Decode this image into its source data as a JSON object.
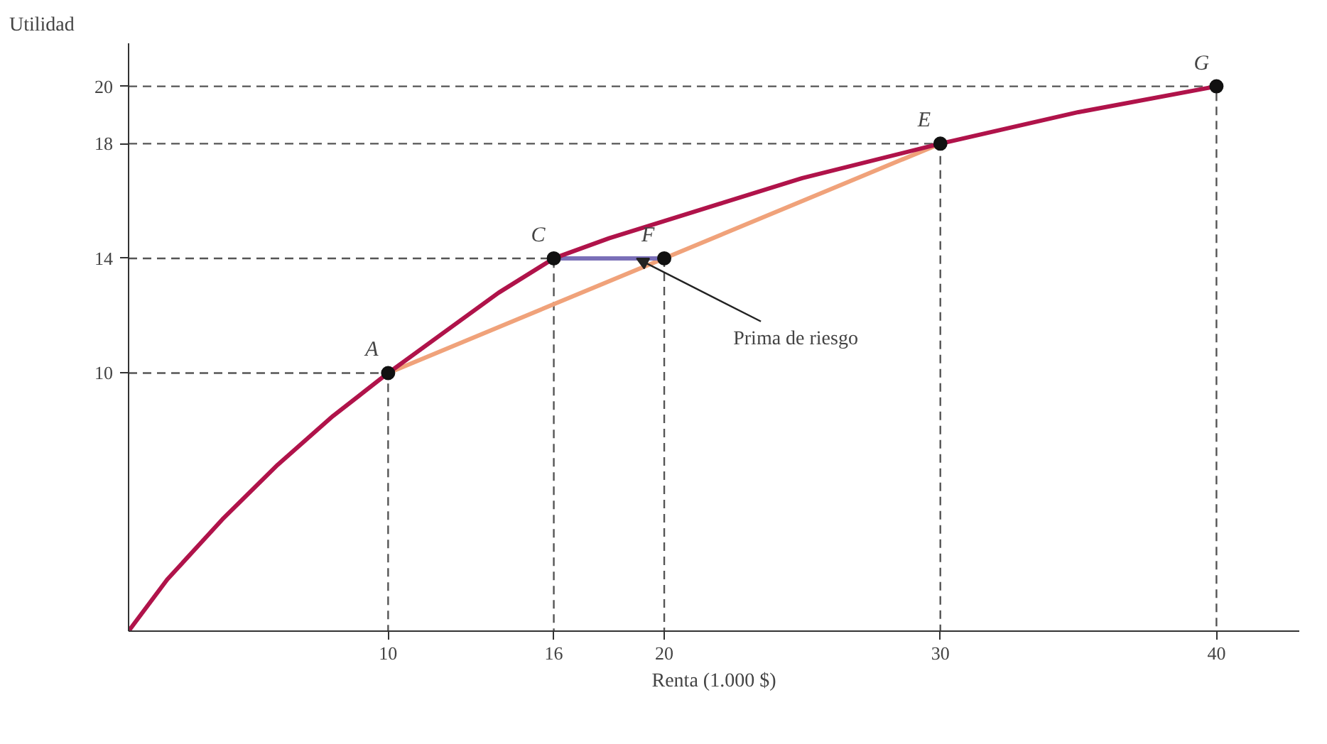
{
  "chart_data": {
    "type": "line",
    "xlabel": "Renta (1.000 $)",
    "ylabel": "Utilidad",
    "xlim": [
      0.6,
      43
    ],
    "ylim": [
      1,
      21.5
    ],
    "xticks": [
      10,
      16,
      20,
      30,
      40
    ],
    "yticks": [
      10,
      14,
      18,
      20
    ],
    "grid": false,
    "series": [
      {
        "color": "#555555",
        "line_style": "dashed",
        "x": [
          0.6,
          10,
          10
        ],
        "values": [
          10,
          10,
          1
        ]
      },
      {
        "color": "#555555",
        "line_style": "dashed",
        "x": [
          0.6,
          16,
          16
        ],
        "values": [
          14,
          14,
          1
        ]
      },
      {
        "color": "#555555",
        "line_style": "dashed",
        "x": [
          20,
          20
        ],
        "values": [
          14,
          1
        ]
      },
      {
        "color": "#555555",
        "line_style": "dashed",
        "x": [
          0.6,
          30,
          30
        ],
        "values": [
          18,
          18,
          1
        ]
      },
      {
        "color": "#555555",
        "line_style": "dashed",
        "x": [
          0.6,
          40,
          40
        ],
        "values": [
          20,
          20,
          1
        ]
      },
      {
        "color": "#f0a27a",
        "line_style": "solid",
        "x": [
          10,
          30
        ],
        "values": [
          10,
          18
        ]
      },
      {
        "color": "#7a6fb8",
        "line_style": "solid",
        "x": [
          16,
          20
        ],
        "values": [
          14,
          14
        ]
      },
      {
        "color": "#b0134a",
        "line_style": "solid",
        "x": [
          0.6,
          2,
          4,
          6,
          8,
          10,
          12,
          14,
          16,
          18,
          20,
          22,
          25,
          30,
          35,
          40
        ],
        "values": [
          1,
          2.8,
          4.9,
          6.8,
          8.5,
          10,
          11.4,
          12.8,
          14,
          14.7,
          15.3,
          15.9,
          16.8,
          18,
          19.1,
          20
        ]
      },
      {
        "type": "scatter",
        "color": "#111111",
        "marker": "circle",
        "x": [
          10,
          16,
          20,
          30,
          40
        ],
        "values": [
          10,
          14,
          14,
          18,
          20
        ]
      }
    ],
    "annotations": [
      {
        "text": "A",
        "x": 10,
        "y": 10
      },
      {
        "text": "C",
        "x": 16,
        "y": 14
      },
      {
        "text": "F",
        "x": 20,
        "y": 14
      },
      {
        "text": "E",
        "x": 30,
        "y": 18
      },
      {
        "text": "G",
        "x": 40,
        "y": 20
      },
      {
        "text": "Prima de riesgo",
        "x": 19,
        "y": 14
      }
    ]
  }
}
